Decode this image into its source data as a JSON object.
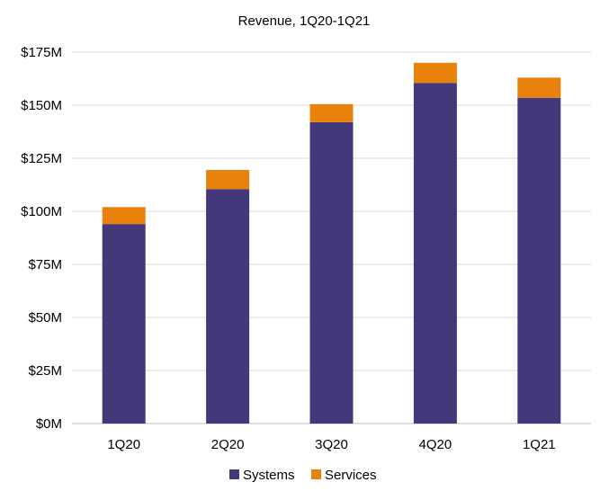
{
  "chart_data": {
    "type": "bar",
    "stacked": true,
    "title": "Revenue, 1Q20-1Q21",
    "categories": [
      "1Q20",
      "2Q20",
      "3Q20",
      "4Q20",
      "1Q21"
    ],
    "series": [
      {
        "name": "Systems",
        "color": "#433879",
        "values": [
          94,
          110.5,
          142,
          160.5,
          153.5
        ]
      },
      {
        "name": "Services",
        "color": "#E8820C",
        "values": [
          8,
          9,
          8.5,
          9.5,
          9.5
        ]
      }
    ],
    "ylim": [
      0,
      175
    ],
    "yticks": [
      0,
      25,
      50,
      75,
      100,
      125,
      150,
      175
    ],
    "ytick_labels": [
      "$0M",
      "$25M",
      "$50M",
      "$75M",
      "$100M",
      "$125M",
      "$150M",
      "$175M"
    ],
    "xlabel": "",
    "ylabel": "",
    "grid": true,
    "legend_position": "bottom"
  }
}
